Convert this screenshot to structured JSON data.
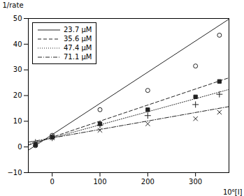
{
  "chart_data": {
    "type": "scatter",
    "xlabel": "10⁶[I]",
    "ylabel": "1/rate",
    "xlim": [
      -50,
      370
    ],
    "ylim": [
      -10,
      50
    ],
    "xticks": [
      0,
      100,
      200,
      300
    ],
    "yticks": [
      -10,
      0,
      10,
      20,
      30,
      40,
      50
    ],
    "grid": false,
    "legend": "upper left",
    "series": [
      {
        "name": "23.7 μM",
        "color": "#222222",
        "marker": "circle",
        "line_style": "solid",
        "x": [
          -35,
          0,
          100,
          200,
          300,
          350
        ],
        "values": [
          0.5,
          4.5,
          14.5,
          22.0,
          31.5,
          43.5
        ],
        "line": {
          "x": [
            -50,
            370
          ],
          "values": [
            -1.275,
            49.755
          ]
        }
      },
      {
        "name": "35.6 μM",
        "color": "#222222",
        "marker": "square",
        "line_style": "dashed",
        "x": [
          -35,
          0,
          100,
          200,
          300,
          350
        ],
        "values": [
          0.8,
          3.8,
          9.0,
          14.5,
          19.5,
          25.5
        ],
        "line": {
          "x": [
            -50,
            370
          ],
          "values": [
            0.675,
            26.925
          ]
        }
      },
      {
        "name": "47.4 μM",
        "color": "#222222",
        "marker": "plus",
        "line_style": "dotted",
        "x": [
          -35,
          0,
          100,
          200,
          300,
          350
        ],
        "values": [
          1.8,
          3.5,
          8.5,
          12.2,
          16.5,
          20.5
        ],
        "line": {
          "x": [
            -50,
            370
          ],
          "values": [
            0.95,
            22.37
          ]
        }
      },
      {
        "name": "71.1 μM",
        "color": "#222222",
        "marker": "x",
        "line_style": "dashdot",
        "x": [
          -35,
          0,
          100,
          200,
          300,
          350
        ],
        "values": [
          1.5,
          3.5,
          6.5,
          9.0,
          11.0,
          13.5
        ],
        "line": {
          "x": [
            -50,
            370
          ],
          "values": [
            1.85,
            15.71
          ]
        }
      }
    ]
  }
}
